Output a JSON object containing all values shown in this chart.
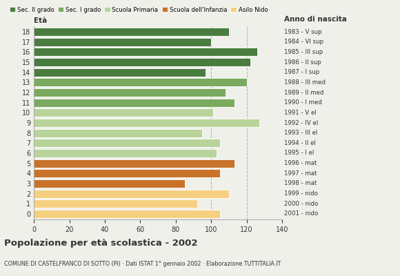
{
  "ages": [
    18,
    17,
    16,
    15,
    14,
    13,
    12,
    11,
    10,
    9,
    8,
    7,
    6,
    5,
    4,
    3,
    2,
    1,
    0
  ],
  "values": [
    110,
    100,
    126,
    122,
    97,
    120,
    108,
    113,
    101,
    127,
    95,
    105,
    103,
    113,
    105,
    85,
    110,
    92,
    105
  ],
  "right_labels": [
    "1983 - V sup",
    "1984 - VI sup",
    "1985 - III sup",
    "1986 - II sup",
    "1987 - I sup",
    "1988 - III med",
    "1989 - II med",
    "1990 - I med",
    "1991 - V el",
    "1992 - IV el",
    "1993 - III el",
    "1994 - II el",
    "1995 - I el",
    "1996 - mat",
    "1997 - mat",
    "1998 - mat",
    "1999 - nido",
    "2000 - nido",
    "2001 - nido"
  ],
  "bar_colors": [
    "#4a7c3f",
    "#4a7c3f",
    "#4a7c3f",
    "#4a7c3f",
    "#4a7c3f",
    "#7aaa5f",
    "#7aaa5f",
    "#7aaa5f",
    "#b8d49a",
    "#b8d49a",
    "#b8d49a",
    "#b8d49a",
    "#b8d49a",
    "#c8722a",
    "#c8722a",
    "#c8722a",
    "#f5d080",
    "#f5d080",
    "#f5d080"
  ],
  "legend_labels": [
    "Sec. II grado",
    "Sec. I grado",
    "Scuola Primaria",
    "Scuola dell'Infanzia",
    "Asilo Nido"
  ],
  "legend_colors": [
    "#4a7c3f",
    "#7aaa5f",
    "#b8d49a",
    "#c8722a",
    "#f5d080"
  ],
  "title": "Popolazione per età scolastica - 2002",
  "subtitle": "COMUNE DI CASTELFRANCO DI SOTTO (PI) · Dati ISTAT 1° gennaio 2002 · Elaborazione TUTTITALIA.IT",
  "xlabel_eta": "Età",
  "xlabel_anno": "Anno di nascita",
  "xlim": [
    0,
    140
  ],
  "xticks": [
    0,
    20,
    40,
    60,
    80,
    100,
    120,
    140
  ],
  "gridlines": [
    100,
    120
  ],
  "background_color": "#f0f0eb"
}
